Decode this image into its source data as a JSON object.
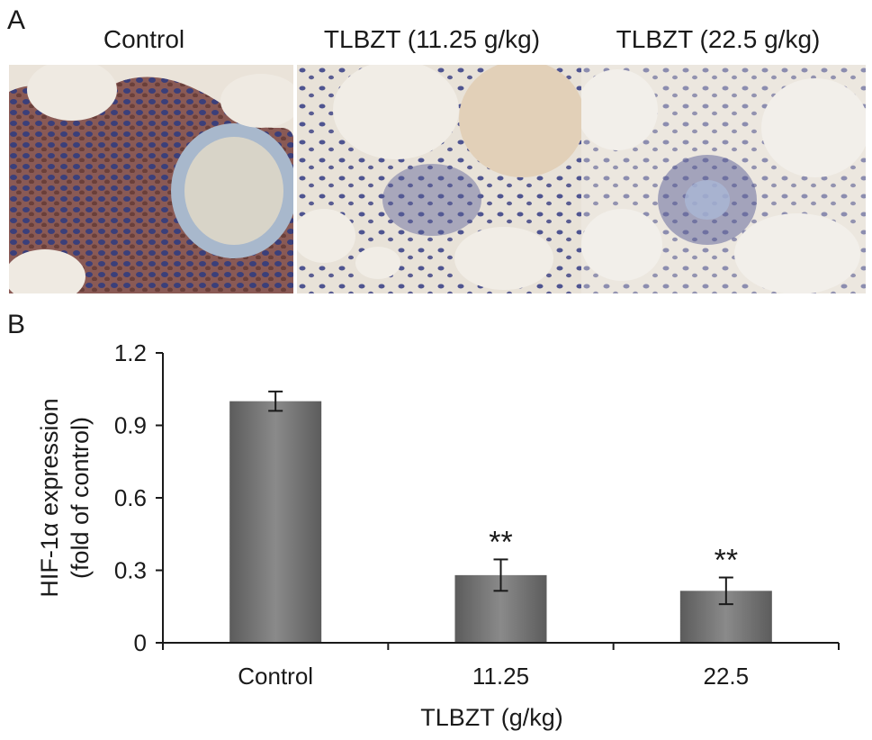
{
  "panel_a": {
    "letter": "A",
    "images": [
      {
        "title": "Control",
        "description": "IHC micrograph, heavy brown staining"
      },
      {
        "title": "TLBZT (11.25 g/kg)",
        "description": "IHC micrograph, moderate staining"
      },
      {
        "title": "TLBZT (22.5 g/kg)",
        "description": "IHC micrograph, light staining"
      }
    ]
  },
  "panel_b": {
    "letter": "B"
  },
  "colors": {
    "bar": "#5c5c5c",
    "bar_light": "#8a8a8a",
    "axis": "#1a1a1a"
  },
  "chart_data": {
    "type": "bar",
    "categories": [
      "Control",
      "11.25",
      "22.5"
    ],
    "values": [
      1.0,
      0.28,
      0.215
    ],
    "errors": [
      0.04,
      0.065,
      0.055
    ],
    "annotations": [
      "",
      "**",
      "**"
    ],
    "xlabel": "TLBZT (g/kg)",
    "ylabel_line1": "HIF-1α expression",
    "ylabel_line2": "(fold of control)",
    "ylim": [
      0,
      1.2
    ],
    "yticks": [
      0,
      0.3,
      0.6,
      0.9,
      1.2
    ],
    "ytick_labels": [
      "0",
      "0.3",
      "0.6",
      "0.9",
      "1.2"
    ],
    "grid": false
  }
}
